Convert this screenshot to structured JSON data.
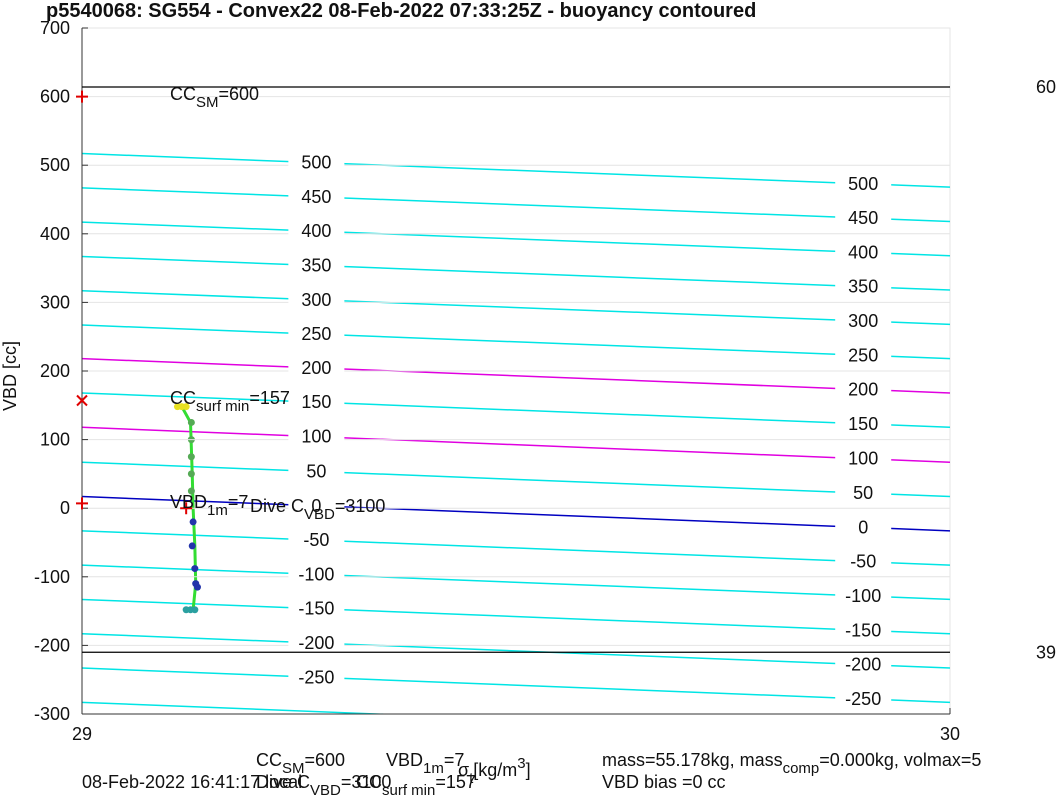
{
  "chart_data": {
    "type": "contour",
    "title": "p5540068: SG554 - Convex22 08-Feb-2022 07:33:25Z - buoyancy contoured",
    "ylabel": "VBD [cc]",
    "xlabel": [
      {
        "text": "σ"
      },
      {
        "text": "t",
        "sub": true
      },
      {
        "text": " [kg/m"
      },
      {
        "text": "3",
        "sup": true
      },
      {
        "text": "]"
      }
    ],
    "xlim": [
      29,
      30
    ],
    "xticks": [
      29,
      30
    ],
    "ylim": [
      -300,
      700
    ],
    "yticks": [
      -300,
      -200,
      -100,
      0,
      100,
      200,
      300,
      400,
      500,
      600,
      700
    ],
    "grid": true,
    "contours": [
      {
        "level": 500,
        "y": [
          517,
          468
        ],
        "color": "#00e5e5"
      },
      {
        "level": 450,
        "y": [
          467,
          418
        ],
        "color": "#00e5e5"
      },
      {
        "level": 400,
        "y": [
          417,
          368
        ],
        "color": "#00e5e5"
      },
      {
        "level": 350,
        "y": [
          367,
          318
        ],
        "color": "#00e5e5"
      },
      {
        "level": 300,
        "y": [
          317,
          268
        ],
        "color": "#00e5e5"
      },
      {
        "level": 250,
        "y": [
          267,
          218
        ],
        "color": "#00e5e5"
      },
      {
        "level": 200,
        "y": [
          218,
          168
        ],
        "color": "#e000e0"
      },
      {
        "level": 150,
        "y": [
          168,
          118
        ],
        "color": "#00e5e5"
      },
      {
        "level": 100,
        "y": [
          118,
          67
        ],
        "color": "#e000e0"
      },
      {
        "level": 50,
        "y": [
          67,
          17
        ],
        "color": "#00e5e5"
      },
      {
        "level": 0,
        "y": [
          17,
          -33
        ],
        "color": "#0000c0"
      },
      {
        "level": -50,
        "y": [
          -33,
          -83
        ],
        "color": "#00e5e5"
      },
      {
        "level": -100,
        "y": [
          -83,
          -133
        ],
        "color": "#00e5e5"
      },
      {
        "level": -150,
        "y": [
          -133,
          -183
        ],
        "color": "#00e5e5"
      },
      {
        "level": -200,
        "y": [
          -183,
          -233
        ],
        "color": "#00e5e5"
      },
      {
        "level": -250,
        "y": [
          -233,
          -283
        ],
        "color": "#00e5e5"
      },
      {
        "level": -300,
        "y": [
          -283,
          -333
        ],
        "color": "#00e5e5"
      }
    ],
    "hlines": [
      614,
      -210
    ],
    "right_labels": [
      "60",
      "39"
    ],
    "trace": {
      "color": "#33dd33",
      "x": [
        29.115,
        29.125,
        29.127,
        29.128,
        29.13,
        29.131,
        29.128
      ],
      "y": [
        148,
        125,
        50,
        0,
        -55,
        -110,
        -148
      ]
    },
    "series": [
      {
        "name": "ascent",
        "color": "#55aa55",
        "x": [
          29.126,
          29.126,
          29.126,
          29.126,
          29.126
        ],
        "y": [
          125,
          100,
          75,
          50,
          25
        ]
      },
      {
        "name": "descent",
        "color": "#2233aa",
        "x": [
          29.128,
          29.127,
          29.13,
          29.131,
          29.133
        ],
        "y": [
          -20,
          -55,
          -88,
          -110,
          -115
        ]
      },
      {
        "name": "surface",
        "color": "#e8e020",
        "x": [
          29.11,
          29.115,
          29.12
        ],
        "y": [
          148,
          148,
          148
        ]
      },
      {
        "name": "bottom",
        "color": "#2aa0a0",
        "x": [
          29.12,
          29.125,
          29.13
        ],
        "y": [
          -148,
          -148,
          -148
        ]
      }
    ],
    "markers": [
      {
        "x": 29,
        "y": 600,
        "symbol": "+"
      },
      {
        "x": 29,
        "y": 157,
        "symbol": "x"
      },
      {
        "x": 29,
        "y": 7,
        "symbol": "+"
      },
      {
        "x": 29.12,
        "y": 0,
        "symbol": "+"
      }
    ],
    "annotations": [
      [
        {
          "text": "CC"
        },
        {
          "text": "SM",
          "sub": true
        },
        {
          "text": "=600"
        }
      ],
      [
        {
          "text": "CC"
        },
        {
          "text": "surf min",
          "sub": true
        },
        {
          "text": "=157"
        }
      ],
      [
        {
          "text": "VBD"
        },
        {
          "text": "1m",
          "sub": true
        },
        {
          "text": "=7"
        }
      ],
      [
        {
          "text": "Dive C"
        },
        {
          "text": "VBD",
          "sub": true
        },
        {
          "text": "=3100"
        }
      ],
      [
        {
          "text": "CC"
        },
        {
          "text": "SM",
          "sub": true
        },
        {
          "text": "=600"
        }
      ],
      [
        {
          "text": "VBD"
        },
        {
          "text": "1m",
          "sub": true
        },
        {
          "text": "=7"
        }
      ],
      [
        {
          "text": "mass=55.178kg, mass"
        },
        {
          "text": "comp",
          "sub": true
        },
        {
          "text": "=0.000kg, volmax=5"
        }
      ],
      [
        {
          "text": "08-Feb-2022 16:41:17 local"
        }
      ],
      [
        {
          "text": "Dive C"
        },
        {
          "text": "VBD",
          "sub": true
        },
        {
          "text": "=3100"
        }
      ],
      [
        {
          "text": "CC"
        },
        {
          "text": "surf min",
          "sub": true
        },
        {
          "text": "=157"
        }
      ],
      [
        {
          "text": "VBD bias =0 cc"
        }
      ]
    ]
  }
}
